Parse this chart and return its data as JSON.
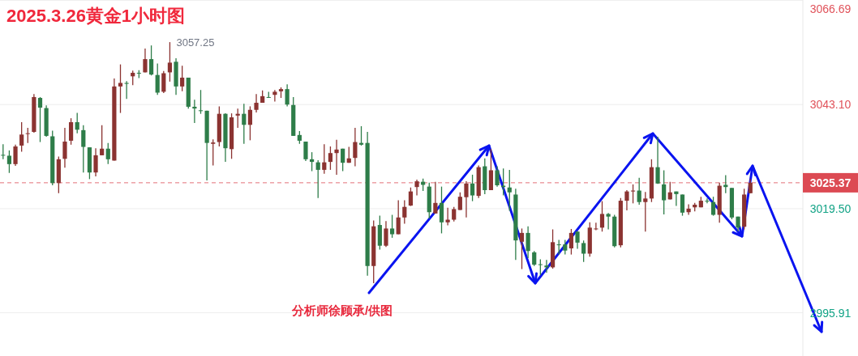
{
  "chart_data": {
    "type": "candlestick",
    "title": "2025.3.26黄金1小时图",
    "categories": [
      null,
      null,
      null,
      null,
      null,
      null,
      null,
      null,
      null,
      null,
      null,
      null,
      null,
      null,
      null,
      null,
      null,
      null,
      null,
      null,
      null,
      null,
      null,
      null,
      null,
      null,
      null,
      null,
      null,
      null,
      null,
      null,
      null,
      null,
      null,
      null,
      null,
      null,
      null,
      null,
      null,
      null,
      null,
      null,
      null,
      null,
      null,
      null,
      null,
      null,
      null,
      null,
      null,
      null,
      null,
      null,
      null,
      null,
      null,
      null,
      null,
      null,
      null,
      null,
      null,
      null,
      null,
      null,
      null,
      null,
      null,
      null,
      null,
      null,
      null,
      null,
      null,
      null,
      null,
      null,
      null,
      null,
      null,
      null,
      null,
      null,
      null,
      null,
      null,
      null,
      null,
      null,
      null,
      null,
      null,
      null,
      null,
      null,
      null,
      null,
      null,
      null,
      null,
      null,
      null,
      null,
      null,
      null,
      null,
      null,
      null,
      null,
      null,
      null,
      null,
      null,
      null,
      null,
      null,
      null,
      null,
      null,
      null,
      null,
      null,
      null,
      null,
      null,
      null,
      null
    ],
    "ohlc": [
      [
        3031.7,
        3034.1,
        3030.7,
        3031.6
      ],
      [
        3031.5,
        3032.7,
        3027.6,
        3029.6
      ],
      [
        3029.6,
        3034.0,
        3029.2,
        3033.6
      ],
      [
        3033.8,
        3039.1,
        3032.4,
        3036.3
      ],
      [
        3036.5,
        3037.8,
        3034.4,
        3036.6
      ],
      [
        3036.9,
        3045.5,
        3036.7,
        3044.8
      ],
      [
        3044.6,
        3044.8,
        3034.6,
        3042.4
      ],
      [
        3042.3,
        3042.9,
        3035.8,
        3036.0
      ],
      [
        3035.9,
        3037.2,
        3024.8,
        3025.3
      ],
      [
        3025.3,
        3031.3,
        3023.0,
        3030.7
      ],
      [
        3030.8,
        3037.8,
        3028.8,
        3034.7
      ],
      [
        3034.9,
        3040.0,
        3034.0,
        3039.1
      ],
      [
        3039.1,
        3041.2,
        3036.6,
        3037.4
      ],
      [
        3037.3,
        3038.4,
        3027.7,
        3033.5
      ],
      [
        3033.4,
        3033.4,
        3026.2,
        3027.7
      ],
      [
        3027.7,
        3033.2,
        3026.8,
        3031.6
      ],
      [
        3031.6,
        3038.4,
        3031.6,
        3033.1
      ],
      [
        3033.1,
        3034.4,
        3029.6,
        3030.7
      ],
      [
        3030.4,
        3049.0,
        3030.4,
        3047.2
      ],
      [
        3047.2,
        3052.2,
        3041.2,
        3048.0
      ],
      [
        3048.0,
        3048.4,
        3044.4,
        3047.8
      ],
      [
        3049.5,
        3050.8,
        3047.5,
        3050.3
      ],
      [
        3050.3,
        3050.9,
        3049.1,
        3050.2
      ],
      [
        3050.4,
        3055.8,
        3050.4,
        3053.4
      ],
      [
        3053.4,
        3056.5,
        3049.7,
        3049.9
      ],
      [
        3049.8,
        3052.4,
        3045.3,
        3045.8
      ],
      [
        3046.0,
        3050.7,
        3045.7,
        3050.2
      ],
      [
        3050.4,
        3057.25,
        3048.3,
        3052.6
      ],
      [
        3052.8,
        3053.6,
        3045.3,
        3047.2
      ],
      [
        3047.2,
        3051.9,
        3046.1,
        3049.2
      ],
      [
        3049.2,
        3049.2,
        3042.2,
        3042.6
      ],
      [
        3042.6,
        3044.2,
        3038.9,
        3042.2
      ],
      [
        3041.8,
        3046.4,
        3041.0,
        3041.7
      ],
      [
        3041.7,
        3041.7,
        3025.9,
        3034.4
      ],
      [
        3034.2,
        3035.2,
        3029.3,
        3034.5
      ],
      [
        3034.6,
        3042.7,
        3033.6,
        3041.0
      ],
      [
        3041.0,
        3041.1,
        3030.1,
        3033.2
      ],
      [
        3033.0,
        3041.1,
        3030.8,
        3040.2
      ],
      [
        3040.6,
        3042.2,
        3037.8,
        3041.0
      ],
      [
        3041.0,
        3043.3,
        3034.2,
        3038.5
      ],
      [
        3038.5,
        3042.7,
        3035.0,
        3041.9
      ],
      [
        3041.9,
        3045.5,
        3041.3,
        3043.5
      ],
      [
        3043.5,
        3046.3,
        3043.5,
        3045.0
      ],
      [
        3044.8,
        3046.0,
        3044.6,
        3044.7
      ],
      [
        3045.3,
        3046.4,
        3043.8,
        3046.0
      ],
      [
        3046.1,
        3047.0,
        3044.6,
        3046.6
      ],
      [
        3046.6,
        3047.7,
        3042.7,
        3043.1
      ],
      [
        3043.0,
        3044.8,
        3036.0,
        3036.0
      ],
      [
        3036.2,
        3037.1,
        3034.2,
        3034.9
      ],
      [
        3034.7,
        3034.7,
        3030.3,
        3030.7
      ],
      [
        3030.7,
        3032.3,
        3028.0,
        3030.1
      ],
      [
        3030.0,
        3030.5,
        3021.9,
        3028.3
      ],
      [
        3028.3,
        3034.1,
        3027.4,
        3030.0
      ],
      [
        3030.1,
        3033.6,
        3028.3,
        3032.1
      ],
      [
        3032.1,
        3035.1,
        3027.2,
        3032.9
      ],
      [
        3033.1,
        3033.1,
        3028.0,
        3029.9
      ],
      [
        3029.9,
        3033.5,
        3029.9,
        3030.9
      ],
      [
        3031.0,
        3037.8,
        3029.1,
        3034.6
      ],
      [
        3034.4,
        3038.2,
        3033.8,
        3034.0
      ],
      [
        3034.4,
        3036.9,
        3004.3,
        3006.5
      ],
      [
        3006.5,
        3016.8,
        3002.6,
        3015.5
      ],
      [
        3015.8,
        3017.9,
        3010.2,
        3011.1
      ],
      [
        3011.1,
        3016.7,
        3010.8,
        3015.0
      ],
      [
        3015.0,
        3018.1,
        3012.9,
        3013.7
      ],
      [
        3013.7,
        3021.4,
        3013.7,
        3017.5
      ],
      [
        3017.5,
        3021.4,
        3016.1,
        3019.9
      ],
      [
        3020.2,
        3024.3,
        3020.1,
        3023.4
      ],
      [
        3024.4,
        3026.1,
        3022.5,
        3025.7
      ],
      [
        3025.6,
        3026.3,
        3023.5,
        3024.9
      ],
      [
        3024.5,
        3025.4,
        3017.3,
        3018.7
      ],
      [
        3018.4,
        3025.6,
        3018.4,
        3020.8
      ],
      [
        3020.8,
        3024.5,
        3013.9,
        3016.4
      ],
      [
        3016.4,
        3019.7,
        3015.7,
        3017.0
      ],
      [
        3017.0,
        3019.9,
        3016.6,
        3019.4
      ],
      [
        3019.2,
        3023.2,
        3019.2,
        3022.2
      ],
      [
        3022.1,
        3025.7,
        3017.5,
        3025.2
      ],
      [
        3025.2,
        3027.2,
        3021.2,
        3022.5
      ],
      [
        3022.4,
        3029.3,
        3021.9,
        3028.9
      ],
      [
        3029.1,
        3030.9,
        3022.8,
        3023.7
      ],
      [
        3023.7,
        3033.0,
        3023.7,
        3028.2
      ],
      [
        3028.2,
        3029.1,
        3024.5,
        3024.8
      ],
      [
        3024.7,
        3028.6,
        3022.5,
        3024.4
      ],
      [
        3024.3,
        3028.3,
        3019.0,
        3023.2
      ],
      [
        3022.7,
        3024.0,
        3007.9,
        3012.3
      ],
      [
        3012.0,
        3015.0,
        3005.8,
        3014.0
      ],
      [
        3014.0,
        3015.5,
        3008.3,
        3009.9
      ],
      [
        3009.6,
        3009.9,
        3006.5,
        3006.8
      ],
      [
        3006.9,
        3008.0,
        3004.5,
        3006.8
      ],
      [
        3006.6,
        3007.9,
        3005.0,
        3006.2
      ],
      [
        3006.2,
        3014.8,
        3005.9,
        3011.9
      ],
      [
        3011.4,
        3012.4,
        3009.1,
        3011.3
      ],
      [
        3011.4,
        3012.4,
        3009.1,
        3010.0
      ],
      [
        3010.5,
        3014.9,
        3009.1,
        3014.0
      ],
      [
        3014.3,
        3014.4,
        3010.4,
        3011.8
      ],
      [
        3011.7,
        3012.3,
        3007.4,
        3009.3
      ],
      [
        3009.3,
        3016.4,
        3008.6,
        3015.2
      ],
      [
        3014.9,
        3016.3,
        3014.6,
        3015.0
      ],
      [
        3015.2,
        3021.2,
        3014.3,
        3018.3
      ],
      [
        3018.3,
        3018.5,
        3014.8,
        3017.7
      ],
      [
        3017.7,
        3018.1,
        3010.7,
        3011.0
      ],
      [
        3011.2,
        3021.9,
        3010.7,
        3021.3
      ],
      [
        3021.3,
        3023.7,
        3019.1,
        3023.4
      ],
      [
        3023.4,
        3025.0,
        3020.7,
        3023.6
      ],
      [
        3023.6,
        3026.5,
        3020.4,
        3021.0
      ],
      [
        3021.0,
        3023.3,
        3014.3,
        3021.8
      ],
      [
        3021.8,
        3030.7,
        3021.0,
        3028.9
      ],
      [
        3028.9,
        3035.8,
        3025.1,
        3025.2
      ],
      [
        3025.0,
        3028.2,
        3018.2,
        3021.4
      ],
      [
        3021.6,
        3025.6,
        3021.6,
        3023.2
      ],
      [
        3023.4,
        3023.4,
        3020.1,
        3022.8
      ],
      [
        3022.7,
        3022.7,
        3017.9,
        3018.6
      ],
      [
        3018.7,
        3020.5,
        3018.1,
        3019.5
      ],
      [
        3019.8,
        3020.8,
        3018.9,
        3020.4
      ],
      [
        3019.8,
        3022.2,
        3019.8,
        3021.3
      ],
      [
        3021.3,
        3021.8,
        3020.7,
        3021.2
      ],
      [
        3021.0,
        3022.2,
        3017.9,
        3018.1
      ],
      [
        3018.1,
        3025.4,
        3016.3,
        3024.7
      ],
      [
        3024.9,
        3027.1,
        3023.0,
        3024.4
      ],
      [
        3024.2,
        3024.2,
        3017.1,
        3017.5
      ],
      [
        3017.7,
        3017.7,
        3014.4,
        3015.2
      ],
      [
        3015.4,
        3024.0,
        3014.8,
        3022.7
      ],
      [
        3023.0,
        3026.2,
        3023.0,
        3025.37
      ],
      null,
      null,
      null,
      null,
      null,
      null,
      null,
      null
    ],
    "ylim": [
      2986.1,
      3066.8
    ],
    "yticks": [
      3066.69,
      {
        "value": 3043.1,
        "label": "3043.10"
      },
      {
        "value": 3019.5,
        "label": "3019.50"
      },
      2995.91
    ],
    "tick_labels": "y",
    "grid": "y",
    "ref_lines": [
      {
        "axis": "y",
        "value": 3025.37,
        "label": "3025.37",
        "color": "#dc4a53",
        "line_style": "dashed"
      }
    ],
    "annotations": [
      "3057.25",
      "分析师徐顾承/供图"
    ]
  }
}
